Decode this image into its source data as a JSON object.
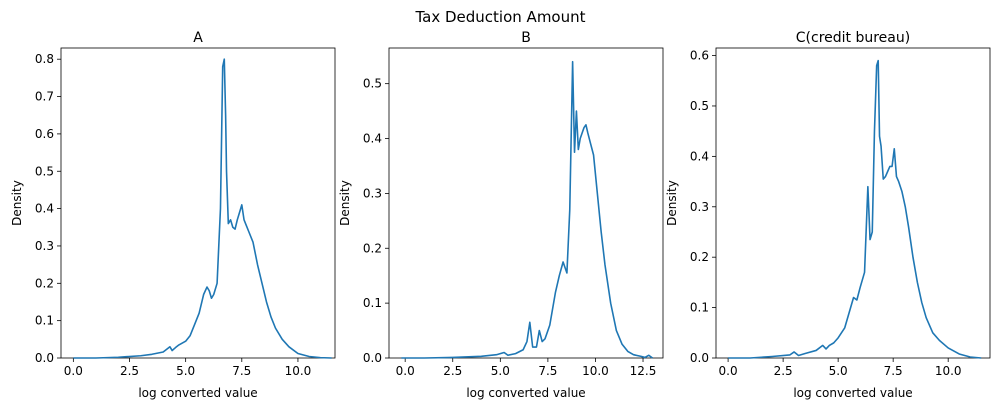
{
  "figure": {
    "suptitle": "Tax Deduction Amount"
  },
  "style": {
    "line_color": "#1f77b4",
    "axis_color": "#000000",
    "background": "#ffffff"
  },
  "chart_data": [
    {
      "type": "line",
      "title": "A",
      "xlabel": "log converted value",
      "ylabel": "Density",
      "xlim": [
        -0.55,
        11.65
      ],
      "ylim": [
        0,
        0.83
      ],
      "xticks": [
        0.0,
        2.5,
        5.0,
        7.5,
        10.0
      ],
      "xtick_labels": [
        "0.0",
        "2.5",
        "5.0",
        "7.5",
        "10.0"
      ],
      "yticks": [
        0.0,
        0.1,
        0.2,
        0.3,
        0.4,
        0.5,
        0.6,
        0.7,
        0.8
      ],
      "ytick_labels": [
        "0.0",
        "0.1",
        "0.2",
        "0.3",
        "0.4",
        "0.5",
        "0.6",
        "0.7",
        "0.8"
      ],
      "grid": false,
      "series": [
        {
          "x": [
            0.0,
            1.0,
            2.0,
            3.0,
            3.5,
            4.0,
            4.3,
            4.4,
            4.55,
            4.7,
            5.0,
            5.2,
            5.4,
            5.6,
            5.8,
            5.95,
            6.05,
            6.15,
            6.25,
            6.4,
            6.55,
            6.65,
            6.72,
            6.78,
            6.82,
            6.9,
            7.0,
            7.1,
            7.2,
            7.3,
            7.4,
            7.5,
            7.6,
            7.7,
            7.8,
            8.0,
            8.2,
            8.4,
            8.6,
            8.8,
            9.0,
            9.3,
            9.6,
            10.0,
            10.5,
            11.0,
            11.5
          ],
          "y": [
            0.0,
            0.0,
            0.002,
            0.006,
            0.01,
            0.016,
            0.03,
            0.02,
            0.028,
            0.035,
            0.045,
            0.06,
            0.09,
            0.12,
            0.17,
            0.19,
            0.18,
            0.16,
            0.17,
            0.2,
            0.4,
            0.78,
            0.8,
            0.65,
            0.5,
            0.36,
            0.37,
            0.35,
            0.345,
            0.37,
            0.39,
            0.41,
            0.37,
            0.355,
            0.34,
            0.31,
            0.25,
            0.2,
            0.15,
            0.11,
            0.08,
            0.05,
            0.03,
            0.012,
            0.004,
            0.001,
            0.0
          ]
        }
      ]
    },
    {
      "type": "line",
      "title": "B",
      "xlabel": "log converted value",
      "ylabel": "Density",
      "xlim": [
        -0.85,
        13.55
      ],
      "ylim": [
        0,
        0.565
      ],
      "xticks": [
        0.0,
        2.5,
        5.0,
        7.5,
        10.0,
        12.5
      ],
      "xtick_labels": [
        "0.0",
        "2.5",
        "5.0",
        "7.5",
        "10.0",
        "12.5"
      ],
      "yticks": [
        0.0,
        0.1,
        0.2,
        0.3,
        0.4,
        0.5
      ],
      "ytick_labels": [
        "0.0",
        "0.1",
        "0.2",
        "0.3",
        "0.4",
        "0.5"
      ],
      "grid": false,
      "series": [
        {
          "x": [
            -0.2,
            1.0,
            2.5,
            4.0,
            4.8,
            5.2,
            5.4,
            5.8,
            6.2,
            6.4,
            6.55,
            6.7,
            6.9,
            7.05,
            7.2,
            7.35,
            7.6,
            7.9,
            8.1,
            8.3,
            8.5,
            8.65,
            8.8,
            8.9,
            9.0,
            9.1,
            9.2,
            9.3,
            9.4,
            9.5,
            9.6,
            9.75,
            9.9,
            10.1,
            10.3,
            10.5,
            10.8,
            11.1,
            11.4,
            11.7,
            12.0,
            12.4,
            12.6,
            12.8,
            13.0
          ],
          "y": [
            0.0,
            0.0,
            0.001,
            0.003,
            0.006,
            0.01,
            0.005,
            0.008,
            0.015,
            0.03,
            0.065,
            0.02,
            0.02,
            0.05,
            0.03,
            0.035,
            0.06,
            0.12,
            0.15,
            0.175,
            0.155,
            0.27,
            0.54,
            0.375,
            0.45,
            0.38,
            0.4,
            0.41,
            0.42,
            0.425,
            0.41,
            0.39,
            0.37,
            0.3,
            0.23,
            0.17,
            0.1,
            0.05,
            0.025,
            0.012,
            0.006,
            0.003,
            0.001,
            0.005,
            0.0
          ]
        }
      ]
    },
    {
      "type": "line",
      "title": "C(credit bureau)",
      "xlabel": "log converted value",
      "ylabel": "Density",
      "xlim": [
        -0.55,
        11.9
      ],
      "ylim": [
        0,
        0.615
      ],
      "xticks": [
        0.0,
        2.5,
        5.0,
        7.5,
        10.0
      ],
      "xtick_labels": [
        "0.0",
        "2.5",
        "5.0",
        "7.5",
        "10.0"
      ],
      "yticks": [
        0.0,
        0.1,
        0.2,
        0.3,
        0.4,
        0.5,
        0.6
      ],
      "ytick_labels": [
        "0.0",
        "0.1",
        "0.2",
        "0.3",
        "0.4",
        "0.5",
        "0.6"
      ],
      "grid": false,
      "series": [
        {
          "x": [
            0.0,
            1.0,
            2.0,
            2.8,
            3.0,
            3.2,
            3.5,
            4.0,
            4.3,
            4.45,
            4.6,
            4.8,
            5.0,
            5.3,
            5.5,
            5.7,
            5.85,
            6.0,
            6.2,
            6.35,
            6.45,
            6.55,
            6.65,
            6.75,
            6.82,
            6.88,
            6.95,
            7.05,
            7.15,
            7.25,
            7.35,
            7.45,
            7.55,
            7.65,
            7.75,
            7.9,
            8.05,
            8.2,
            8.4,
            8.6,
            8.8,
            9.0,
            9.3,
            9.6,
            10.0,
            10.5,
            11.0,
            11.5
          ],
          "y": [
            0.0,
            0.0,
            0.003,
            0.006,
            0.012,
            0.005,
            0.009,
            0.015,
            0.025,
            0.018,
            0.025,
            0.03,
            0.04,
            0.06,
            0.09,
            0.12,
            0.115,
            0.14,
            0.17,
            0.34,
            0.235,
            0.25,
            0.45,
            0.58,
            0.59,
            0.44,
            0.42,
            0.355,
            0.36,
            0.37,
            0.38,
            0.38,
            0.415,
            0.36,
            0.35,
            0.33,
            0.3,
            0.26,
            0.2,
            0.15,
            0.11,
            0.08,
            0.05,
            0.035,
            0.02,
            0.008,
            0.002,
            0.0
          ]
        }
      ]
    }
  ]
}
